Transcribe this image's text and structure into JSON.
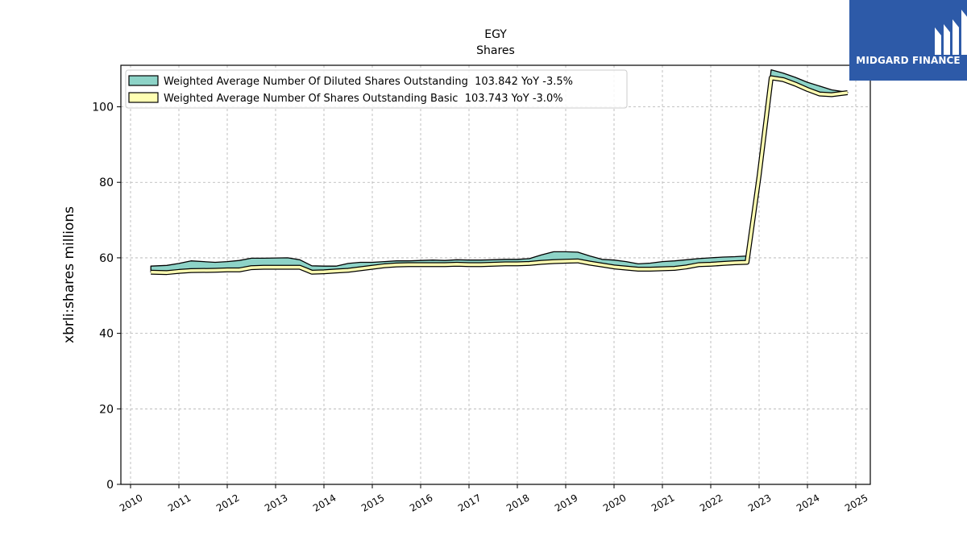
{
  "chart_data": {
    "type": "area",
    "title": "EGY",
    "subtitle": "Shares",
    "ylabel": "xbrli:shares millions",
    "xlabel": "",
    "xlim": [
      2009.8,
      2025.3
    ],
    "ylim": [
      0,
      111
    ],
    "x_ticks": [
      "2010",
      "2011",
      "2012",
      "2013",
      "2014",
      "2015",
      "2016",
      "2017",
      "2018",
      "2019",
      "2020",
      "2021",
      "2022",
      "2023",
      "2024",
      "2025"
    ],
    "y_ticks": [
      0,
      20,
      40,
      60,
      80,
      100
    ],
    "grid": true,
    "legend_position": "top-left",
    "x": [
      2010.42,
      2010.75,
      2011.0,
      2011.25,
      2011.75,
      2012.0,
      2012.25,
      2012.5,
      2012.75,
      2013.25,
      2013.5,
      2013.75,
      2014.0,
      2014.25,
      2014.5,
      2014.75,
      2015.0,
      2015.25,
      2015.5,
      2015.75,
      2016.0,
      2016.25,
      2016.5,
      2016.75,
      2017.0,
      2017.25,
      2017.5,
      2017.75,
      2018.0,
      2018.25,
      2018.5,
      2018.75,
      2019.0,
      2019.25,
      2019.5,
      2019.75,
      2020.0,
      2020.25,
      2020.5,
      2020.75,
      2021.0,
      2021.25,
      2021.5,
      2021.75,
      2022.0,
      2022.25,
      2022.5,
      2022.75,
      2023.0,
      2023.25,
      2023.5,
      2023.75,
      2024.0,
      2024.25,
      2024.5,
      2024.83
    ],
    "series": [
      {
        "name": "Weighted Average Number Of Diluted Shares Outstanding  103.842 YoY -3.5%",
        "color": "#8dd3c7",
        "values": [
          57.8,
          58.0,
          58.5,
          59.2,
          58.8,
          59.0,
          59.3,
          59.9,
          59.9,
          60.0,
          59.5,
          57.9,
          57.8,
          57.8,
          58.5,
          58.8,
          58.8,
          59.0,
          59.2,
          59.2,
          59.3,
          59.4,
          59.3,
          59.5,
          59.4,
          59.4,
          59.5,
          59.6,
          59.6,
          59.8,
          60.8,
          61.6,
          61.6,
          61.5,
          60.5,
          59.6,
          59.4,
          59.0,
          58.4,
          58.6,
          59.0,
          59.2,
          59.5,
          59.8,
          60.0,
          60.2,
          60.3,
          60.5,
          84.0,
          109.8,
          108.9,
          107.8,
          106.5,
          105.5,
          104.5,
          103.842
        ]
      },
      {
        "name": "Weighted Average Number Of Shares Outstanding Basic  103.743 YoY -3.0%",
        "color": "#ffffb3",
        "values": [
          56.2,
          56.1,
          56.4,
          56.6,
          56.7,
          56.8,
          56.8,
          57.4,
          57.5,
          57.5,
          57.5,
          56.2,
          56.3,
          56.5,
          56.7,
          57.1,
          57.5,
          57.9,
          58.1,
          58.2,
          58.2,
          58.2,
          58.2,
          58.3,
          58.2,
          58.2,
          58.3,
          58.4,
          58.4,
          58.5,
          58.8,
          59.0,
          59.1,
          59.2,
          58.6,
          58.1,
          57.6,
          57.3,
          57.0,
          57.0,
          57.1,
          57.2,
          57.6,
          58.2,
          58.3,
          58.5,
          58.7,
          58.8,
          81.7,
          107.7,
          107.2,
          106.0,
          104.6,
          103.4,
          103.2,
          103.743
        ]
      }
    ]
  },
  "logo": {
    "text": "MIDGARD FINANCE"
  }
}
